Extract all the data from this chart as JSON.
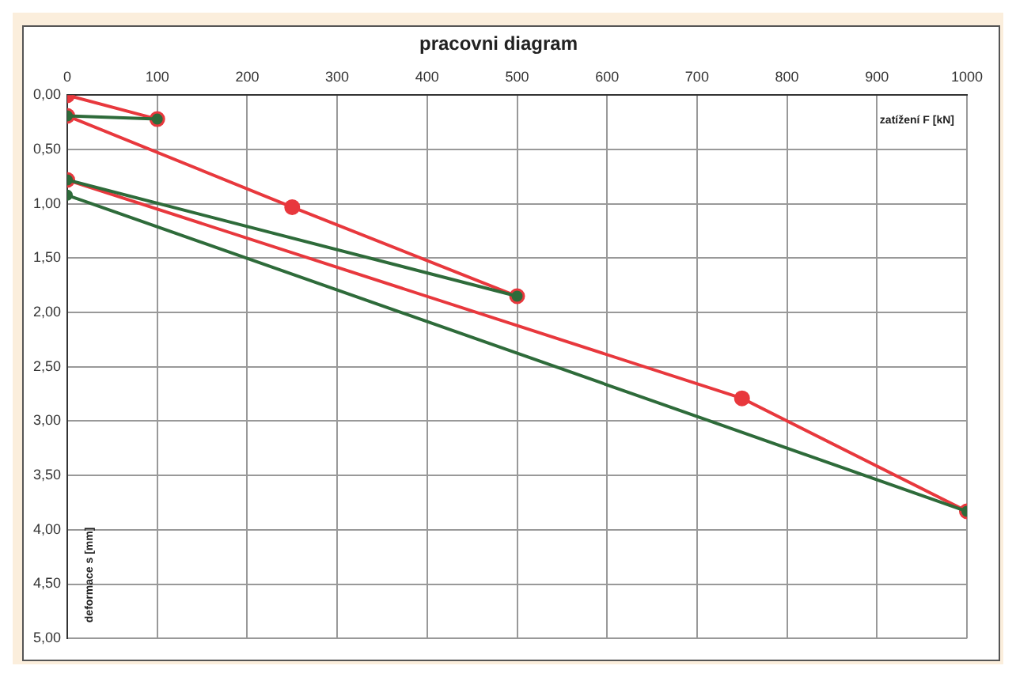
{
  "chart_data": {
    "type": "line",
    "title": "pracovni diagram",
    "xlabel": "zatížení F [kN]",
    "ylabel": "deformace s [mm]",
    "series": [
      {
        "color": "#e8383d",
        "x": [
          0,
          100,
          null,
          0,
          250,
          500,
          null,
          0,
          750,
          1000
        ],
        "values": [
          0,
          0.22,
          null,
          0.19,
          1.03,
          1.85,
          null,
          0.78,
          2.79,
          3.83
        ]
      },
      {
        "color": "#2e6b3a",
        "x": [
          100,
          0,
          null,
          500,
          0,
          null,
          1000,
          0
        ],
        "values": [
          0.22,
          0.19,
          null,
          1.85,
          0.78,
          null,
          3.83,
          0.92
        ]
      }
    ],
    "xlim": [
      0,
      1000
    ],
    "xticks": [
      0,
      100,
      200,
      300,
      400,
      500,
      600,
      700,
      800,
      900,
      1000
    ],
    "ylim": [
      5,
      0
    ],
    "yticks": [
      {
        "value": 0,
        "label": "0,00"
      },
      {
        "value": 0.5,
        "label": "0,50"
      },
      {
        "value": 1,
        "label": "1,00"
      },
      {
        "value": 1.5,
        "label": "1,50"
      },
      {
        "value": 2,
        "label": "2,00"
      },
      {
        "value": 2.5,
        "label": "2,50"
      },
      {
        "value": 3,
        "label": "3,00"
      },
      {
        "value": 3.5,
        "label": "3,50"
      },
      {
        "value": 4,
        "label": "4,00"
      },
      {
        "value": 4.5,
        "label": "4,50"
      },
      {
        "value": 5,
        "label": "5,00"
      }
    ],
    "grid": true,
    "legend": false,
    "marker": "circle",
    "line_style": "solid"
  }
}
